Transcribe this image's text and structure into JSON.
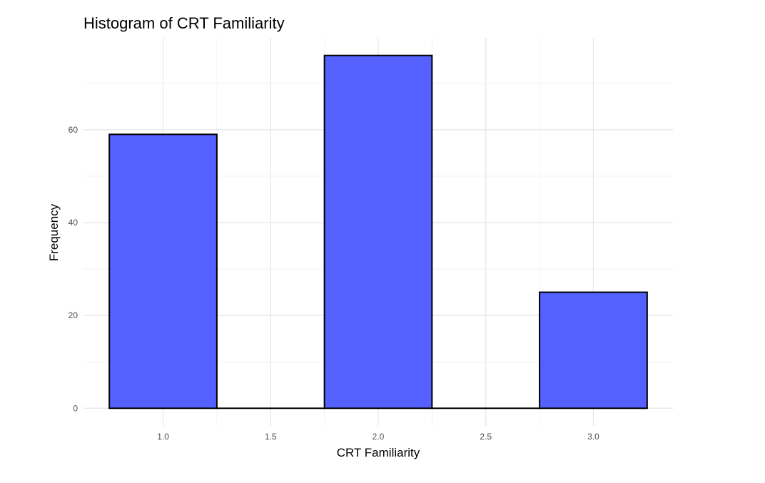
{
  "chart_data": {
    "type": "bar",
    "title": "Histogram of CRT Familiarity",
    "xlabel": "CRT Familiarity",
    "ylabel": "Frequency",
    "x_ticks": [
      "1.0",
      "1.5",
      "2.0",
      "2.5",
      "3.0"
    ],
    "y_ticks": [
      "0",
      "20",
      "40",
      "60"
    ],
    "bins": [
      {
        "start": 0.75,
        "end": 1.25,
        "value": 59
      },
      {
        "start": 1.25,
        "end": 1.75,
        "value": 0
      },
      {
        "start": 1.75,
        "end": 2.25,
        "value": 76
      },
      {
        "start": 2.25,
        "end": 2.75,
        "value": 0
      },
      {
        "start": 2.75,
        "end": 3.25,
        "value": 25
      }
    ],
    "xlim": [
      0.63,
      3.37
    ],
    "ylim": [
      -3.8,
      79.8
    ],
    "grid": true,
    "legend": "none",
    "colors": {
      "bar_fill": "#5461FF",
      "bar_stroke": "#000000",
      "grid_major": "#e5e5e5",
      "grid_minor": "#f2f2f2"
    }
  }
}
